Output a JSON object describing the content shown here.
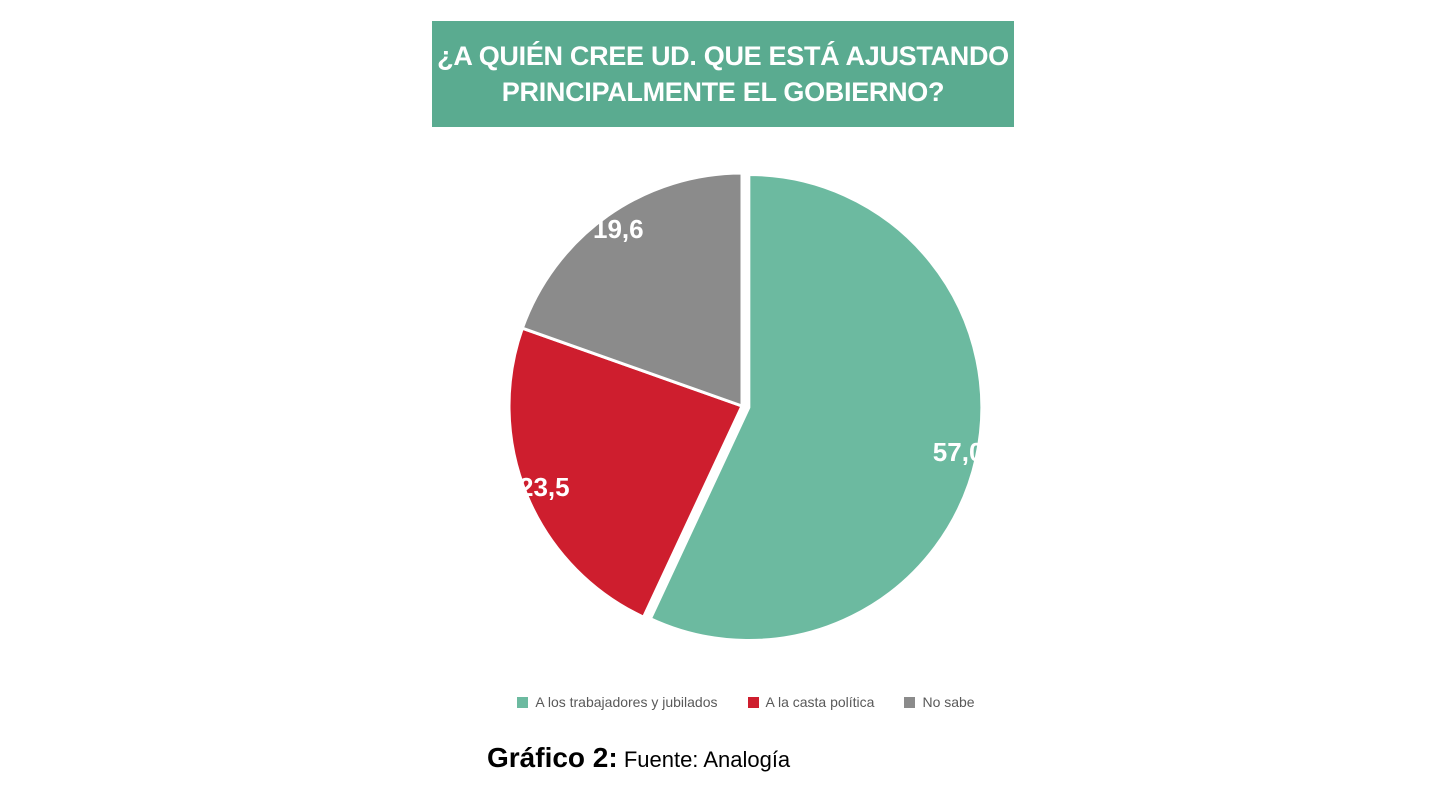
{
  "title": {
    "line1": "¿A QUIÉN CREE UD. QUE ESTÁ AJUSTANDO",
    "line2": "PRINCIPALMENTE EL GOBIERNO?",
    "bg_color": "#5aab90",
    "text_color": "#ffffff"
  },
  "chart_data": {
    "type": "pie",
    "title": "¿A quién cree Ud. que está ajustando principalmente el Gobierno?",
    "start_angle_deg": 0,
    "direction": "clockwise",
    "legend_position": "bottom",
    "label_color": "#ffffff",
    "slices": [
      {
        "label": "A los trabajadores y jubilados",
        "value": 57.0,
        "display": "57,0",
        "color": "#6cbaa0",
        "explode": 7
      },
      {
        "label": "A la casta política",
        "value": 23.5,
        "display": "23,5",
        "color": "#ce1e2e",
        "explode": 0
      },
      {
        "label": "No sabe",
        "value": 19.6,
        "display": "19,6",
        "color": "#8b8b8b",
        "explode": 0
      }
    ]
  },
  "caption": {
    "bold": "Gráfico 2:",
    "text": " Fuente: Analogía"
  }
}
